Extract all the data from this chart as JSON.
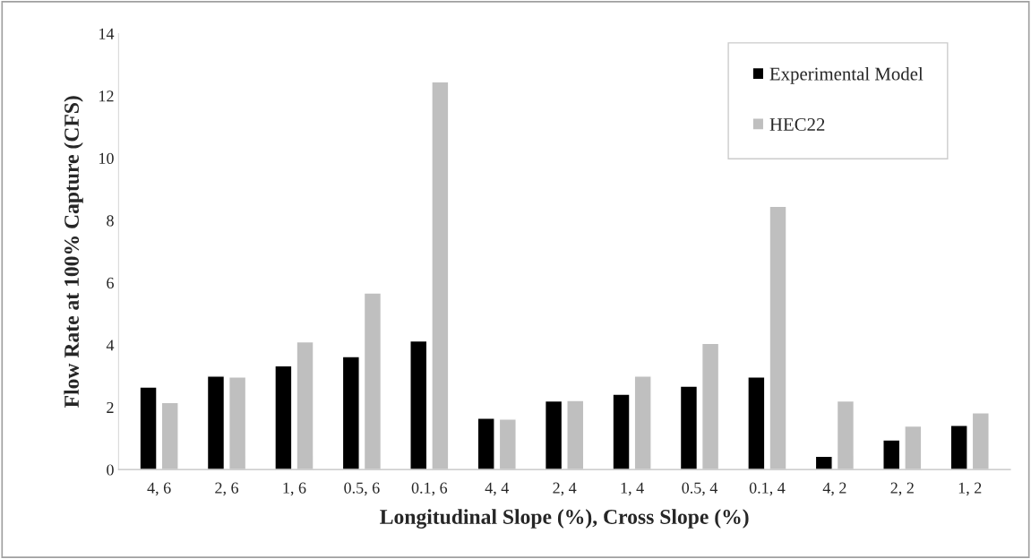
{
  "chart_data": {
    "type": "bar",
    "xlabel": "Longitudinal Slope (%), Cross Slope (%)",
    "ylabel": "Flow Rate at 100% Capture (CFS)",
    "categories": [
      "4, 6",
      "2, 6",
      "1, 6",
      "0.5, 6",
      "0.1, 6",
      "4, 4",
      "2, 4",
      "1, 4",
      "0.5, 4",
      "0.1, 4",
      "4, 2",
      "2, 2",
      "1, 2"
    ],
    "series": [
      {
        "name": "Experimental Model",
        "color": "#000000",
        "values": [
          2.65,
          3.0,
          3.33,
          3.63,
          4.13,
          1.65,
          2.2,
          2.42,
          2.68,
          2.97,
          0.43,
          0.95,
          1.42
        ]
      },
      {
        "name": "HEC22",
        "color": "#bfbfbf",
        "values": [
          2.15,
          2.97,
          4.1,
          5.67,
          12.45,
          1.62,
          2.22,
          3.0,
          4.05,
          8.45,
          2.2,
          1.4,
          1.82
        ]
      }
    ],
    "ylim": [
      0,
      14
    ],
    "yticks": [
      0,
      2,
      4,
      6,
      8,
      10,
      12,
      14
    ],
    "grid": false,
    "legend": "top right"
  }
}
